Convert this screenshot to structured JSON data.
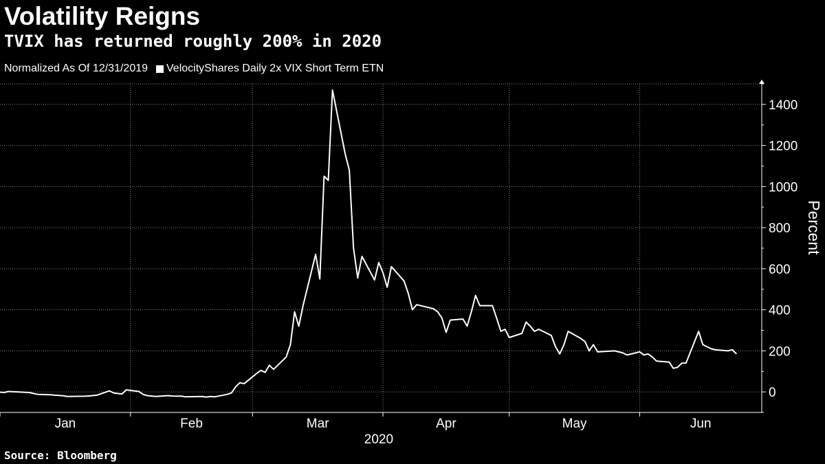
{
  "title": "Volatility Reigns",
  "subtitle": "TVIX has returned roughly 200% in 2020",
  "legend": {
    "note": "Normalized As Of 12/31/2019",
    "series_label": "VelocityShares Daily 2x VIX Short Term ETN"
  },
  "source": "Source: Bloomberg",
  "colors": {
    "background": "#000000",
    "line": "#ffffff",
    "grid": "#888888"
  },
  "chart_data": {
    "type": "line",
    "title": "Volatility Reigns",
    "subtitle": "TVIX has returned roughly 200% in 2020",
    "ylabel": "Percent",
    "ylim": [
      -100,
      1500
    ],
    "y_ticks": [
      0,
      200,
      400,
      600,
      800,
      1000,
      1200,
      1400
    ],
    "x_range": [
      "2020-01-01",
      "2020-06-30"
    ],
    "year_label": "2020",
    "grid": true,
    "y_axis_side": "right",
    "legend_position": "top-left",
    "months": [
      {
        "label": "Jan",
        "start": "2020-01-01"
      },
      {
        "label": "Feb",
        "start": "2020-02-01"
      },
      {
        "label": "Mar",
        "start": "2020-03-01"
      },
      {
        "label": "Apr",
        "start": "2020-04-01"
      },
      {
        "label": "May",
        "start": "2020-05-01"
      },
      {
        "label": "Jun",
        "start": "2020-06-01"
      }
    ],
    "series": [
      {
        "name": "VelocityShares Daily 2x VIX Short Term ETN",
        "x": [
          "2019-12-31",
          "2020-01-02",
          "2020-01-03",
          "2020-01-06",
          "2020-01-07",
          "2020-01-08",
          "2020-01-09",
          "2020-01-10",
          "2020-01-13",
          "2020-01-14",
          "2020-01-15",
          "2020-01-16",
          "2020-01-17",
          "2020-01-21",
          "2020-01-22",
          "2020-01-23",
          "2020-01-24",
          "2020-01-27",
          "2020-01-28",
          "2020-01-29",
          "2020-01-30",
          "2020-01-31",
          "2020-02-03",
          "2020-02-04",
          "2020-02-05",
          "2020-02-06",
          "2020-02-07",
          "2020-02-10",
          "2020-02-11",
          "2020-02-12",
          "2020-02-13",
          "2020-02-14",
          "2020-02-18",
          "2020-02-19",
          "2020-02-20",
          "2020-02-21",
          "2020-02-24",
          "2020-02-25",
          "2020-02-26",
          "2020-02-27",
          "2020-02-28",
          "2020-03-02",
          "2020-03-03",
          "2020-03-04",
          "2020-03-05",
          "2020-03-06",
          "2020-03-09",
          "2020-03-10",
          "2020-03-11",
          "2020-03-12",
          "2020-03-13",
          "2020-03-16",
          "2020-03-17",
          "2020-03-18",
          "2020-03-19",
          "2020-03-20",
          "2020-03-23",
          "2020-03-24",
          "2020-03-25",
          "2020-03-26",
          "2020-03-27",
          "2020-03-30",
          "2020-03-31",
          "2020-04-01",
          "2020-04-02",
          "2020-04-03",
          "2020-04-06",
          "2020-04-07",
          "2020-04-08",
          "2020-04-09",
          "2020-04-13",
          "2020-04-14",
          "2020-04-15",
          "2020-04-16",
          "2020-04-17",
          "2020-04-20",
          "2020-04-21",
          "2020-04-22",
          "2020-04-23",
          "2020-04-24",
          "2020-04-27",
          "2020-04-28",
          "2020-04-29",
          "2020-04-30",
          "2020-05-01",
          "2020-05-04",
          "2020-05-05",
          "2020-05-06",
          "2020-05-07",
          "2020-05-08",
          "2020-05-11",
          "2020-05-12",
          "2020-05-13",
          "2020-05-14",
          "2020-05-15",
          "2020-05-18",
          "2020-05-19",
          "2020-05-20",
          "2020-05-21",
          "2020-05-22",
          "2020-05-26",
          "2020-05-27",
          "2020-05-28",
          "2020-05-29",
          "2020-06-01",
          "2020-06-02",
          "2020-06-03",
          "2020-06-04",
          "2020-06-05",
          "2020-06-08",
          "2020-06-09",
          "2020-06-10",
          "2020-06-11",
          "2020-06-12",
          "2020-06-15",
          "2020-06-16",
          "2020-06-17",
          "2020-06-18",
          "2020-06-19",
          "2020-06-22",
          "2020-06-23",
          "2020-06-24"
        ],
        "values": [
          0,
          -3,
          2,
          -1,
          -2,
          -3,
          -8,
          -12,
          -14,
          -16,
          -17,
          -19,
          -22,
          -21,
          -20,
          -18,
          -16,
          5,
          -5,
          -8,
          -10,
          10,
          2,
          -12,
          -18,
          -20,
          -22,
          -18,
          -20,
          -21,
          -20,
          -24,
          -22,
          -25,
          -22,
          -24,
          -12,
          -5,
          25,
          45,
          40,
          90,
          105,
          95,
          130,
          110,
          170,
          230,
          390,
          320,
          420,
          670,
          550,
          1050,
          1030,
          1470,
          1160,
          1080,
          700,
          555,
          660,
          545,
          630,
          580,
          510,
          610,
          540,
          480,
          400,
          425,
          405,
          390,
          360,
          290,
          350,
          355,
          320,
          390,
          470,
          420,
          420,
          360,
          295,
          305,
          265,
          285,
          340,
          320,
          295,
          305,
          275,
          220,
          185,
          230,
          295,
          260,
          245,
          200,
          230,
          195,
          200,
          195,
          190,
          180,
          195,
          180,
          185,
          170,
          150,
          145,
          115,
          120,
          140,
          140,
          295,
          230,
          220,
          210,
          205,
          200,
          205,
          185
        ]
      }
    ]
  }
}
